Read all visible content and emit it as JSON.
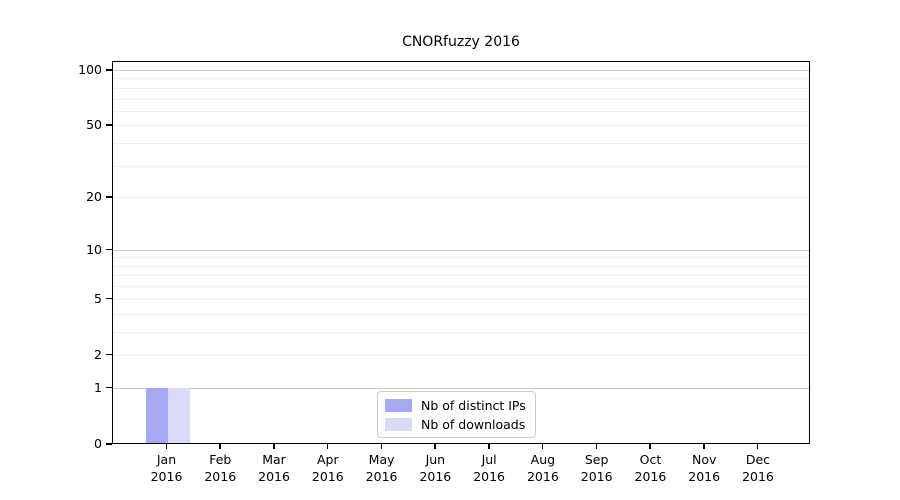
{
  "page": {
    "background": "#ffffff"
  },
  "chart_data": {
    "type": "bar",
    "title": "CNORfuzzy 2016",
    "categories": [
      "Jan",
      "Feb",
      "Mar",
      "Apr",
      "May",
      "Jun",
      "Jul",
      "Aug",
      "Sep",
      "Oct",
      "Nov",
      "Dec"
    ],
    "year_label": "2016",
    "series": [
      {
        "name": "Nb of distinct IPs",
        "color": "#a9a9f3",
        "values": [
          1,
          0,
          0,
          0,
          0,
          0,
          0,
          0,
          0,
          0,
          0,
          0
        ]
      },
      {
        "name": "Nb of downloads",
        "color": "#dadaf8",
        "values": [
          1,
          0,
          0,
          0,
          0,
          0,
          0,
          0,
          0,
          0,
          0,
          0
        ]
      }
    ],
    "xlabel": "",
    "ylabel": "",
    "yscale": "log1p",
    "ylim": [
      0,
      100
    ],
    "y_ticks_labeled": [
      0,
      1,
      2,
      5,
      10,
      20,
      50,
      100
    ],
    "y_gridlines_major": [
      1,
      10,
      100
    ],
    "y_gridlines_minor": [
      2,
      3,
      4,
      5,
      6,
      7,
      8,
      9,
      20,
      30,
      40,
      50,
      60,
      70,
      80,
      90
    ],
    "grid": true,
    "legend": {
      "position": "inside-bottom-center"
    },
    "colors": {
      "grid_major": "#c9c9c9",
      "grid_minor": "#eeeeee",
      "axis": "#000000",
      "background": "#ffffff",
      "text": "#000000"
    }
  }
}
